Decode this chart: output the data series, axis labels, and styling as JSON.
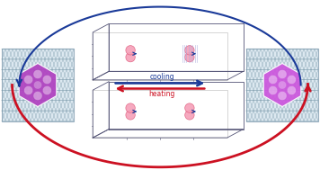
{
  "fig_width": 3.56,
  "fig_height": 1.89,
  "dpi": 100,
  "bg_color": "#ffffff",
  "crystal_bg": "#dce8f0",
  "crystal_border": "#9ab0c0",
  "triangle_color": "#7a9aaa",
  "hexagon_color_left": "#b040c0",
  "hexagon_color_right": "#cc55dd",
  "circle_color": "#f5a0b8",
  "circle_edge": "#e06080",
  "arrow_cooling_color": "#1a3a99",
  "arrow_heating_color": "#cc1122",
  "cooling_label": "cooling",
  "heating_label": "heating",
  "panel_bg": "#ffffff",
  "axis_color": "#555577",
  "stripe_color": "#aaaadd"
}
